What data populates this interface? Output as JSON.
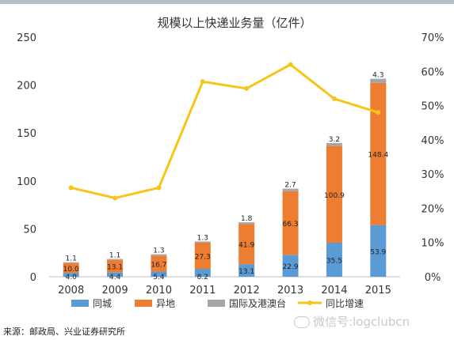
{
  "chart_data": {
    "type": "bar",
    "stacked": true,
    "title": "规模以上快递业务量（亿件）",
    "categories": [
      "2008",
      "2009",
      "2010",
      "2011",
      "2012",
      "2013",
      "2014",
      "2015"
    ],
    "series": [
      {
        "name": "同城",
        "kind": "bar",
        "axis": "left",
        "color": "#5b9bd5",
        "values": [
          4.0,
          4.4,
          5.4,
          8.2,
          13.1,
          22.9,
          35.5,
          53.9
        ],
        "labels": [
          "4.0",
          "4.4",
          "5.4",
          "8.2",
          "13.1",
          "22.9",
          "35.5",
          "53.9"
        ]
      },
      {
        "name": "异地",
        "kind": "bar",
        "axis": "left",
        "color": "#ed7d31",
        "values": [
          10.0,
          13.1,
          16.7,
          27.3,
          41.9,
          66.3,
          100.9,
          148.4
        ],
        "labels": [
          "10.0",
          "13.1",
          "16.7",
          "27.3",
          "41.9",
          "66.3",
          "100.9",
          "148.4"
        ]
      },
      {
        "name": "国际及港澳台",
        "kind": "bar",
        "axis": "left",
        "color": "#a5a5a5",
        "values": [
          1.1,
          1.1,
          1.3,
          1.3,
          1.8,
          2.7,
          3.2,
          4.3
        ],
        "labels": [
          "1.1",
          "1.1",
          "1.3",
          "1.3",
          "1.8",
          "2.7",
          "3.2",
          "4.3"
        ]
      },
      {
        "name": "同比增速",
        "kind": "line",
        "axis": "right",
        "color": "#f5c518",
        "values": [
          0.26,
          0.23,
          0.26,
          0.57,
          0.55,
          0.62,
          0.52,
          0.48
        ]
      }
    ],
    "y_left": {
      "min": 0,
      "max": 250,
      "ticks": [
        0,
        50,
        100,
        150,
        200,
        250
      ],
      "tick_labels": [
        "0",
        "50",
        "100",
        "150",
        "200",
        "250"
      ]
    },
    "y_right": {
      "min": 0,
      "max": 0.7,
      "ticks": [
        0,
        0.1,
        0.2,
        0.3,
        0.4,
        0.5,
        0.6,
        0.7
      ],
      "tick_labels": [
        "0%",
        "10%",
        "20%",
        "30%",
        "40%",
        "50%",
        "60%",
        "70%"
      ]
    },
    "grid": false,
    "legend_position": "bottom"
  },
  "source": "来源：邮政局、兴业证券研究所",
  "watermark": "微信号:logclubcn"
}
